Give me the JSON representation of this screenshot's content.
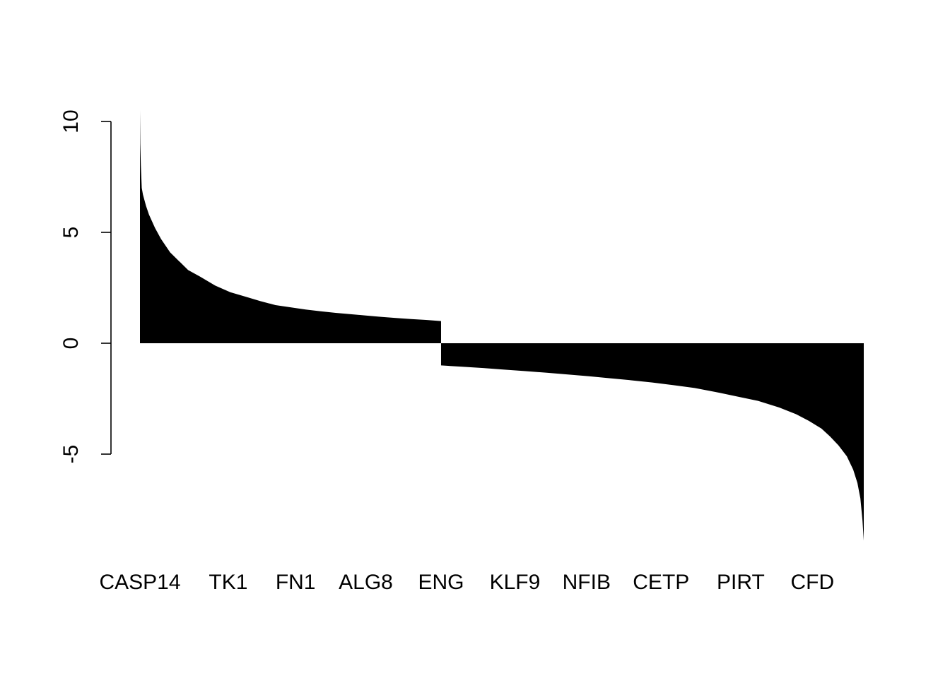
{
  "chart_data": {
    "type": "bar",
    "title": "",
    "xlabel": "",
    "ylabel": "",
    "ylim": [
      -8.9,
      10.5
    ],
    "bar_color": "#000000",
    "background": "#ffffff",
    "y_ticks": [
      -5,
      0,
      5,
      10
    ],
    "y_tick_labels": [
      "-5",
      "0",
      "5",
      "10"
    ],
    "x_tick_labels": [
      "CASP14",
      "TK1",
      "FN1",
      "ALG8",
      "ENG",
      "KLF9",
      "NFIB",
      "CETP",
      "PIRT",
      "CFD"
    ],
    "x_tick_positions": [
      0.0,
      0.122,
      0.215,
      0.312,
      0.416,
      0.518,
      0.617,
      0.72,
      0.83,
      0.929
    ],
    "profile": {
      "positive": {
        "fraction": [
          0.0,
          0.001,
          0.003,
          0.006,
          0.01,
          0.02,
          0.03,
          0.05,
          0.07,
          0.1,
          0.13,
          0.16,
          0.2,
          0.25,
          0.3,
          0.35,
          0.4,
          0.45,
          0.5,
          0.55,
          0.6,
          0.65,
          0.7,
          0.75,
          0.8,
          0.85,
          0.9,
          0.95,
          1.0
        ],
        "value": [
          10.5,
          9.0,
          8.0,
          7.0,
          6.7,
          6.2,
          5.8,
          5.2,
          4.7,
          4.1,
          3.7,
          3.3,
          3.0,
          2.6,
          2.3,
          2.1,
          1.9,
          1.72,
          1.62,
          1.52,
          1.44,
          1.37,
          1.31,
          1.25,
          1.19,
          1.14,
          1.09,
          1.05,
          1.0
        ]
      },
      "negative": {
        "fraction": [
          0.0,
          0.05,
          0.1,
          0.15,
          0.2,
          0.25,
          0.3,
          0.35,
          0.4,
          0.45,
          0.5,
          0.55,
          0.6,
          0.65,
          0.7,
          0.75,
          0.8,
          0.84,
          0.87,
          0.9,
          0.92,
          0.94,
          0.96,
          0.975,
          0.985,
          0.992,
          0.997,
          1.0
        ],
        "value": [
          -1.0,
          -1.06,
          -1.12,
          -1.19,
          -1.26,
          -1.33,
          -1.41,
          -1.49,
          -1.58,
          -1.67,
          -1.77,
          -1.89,
          -2.02,
          -2.2,
          -2.4,
          -2.6,
          -2.9,
          -3.2,
          -3.5,
          -3.85,
          -4.2,
          -4.6,
          -5.1,
          -5.7,
          -6.3,
          -7.0,
          -8.0,
          -8.9
        ]
      },
      "positive_share": 0.416
    }
  }
}
